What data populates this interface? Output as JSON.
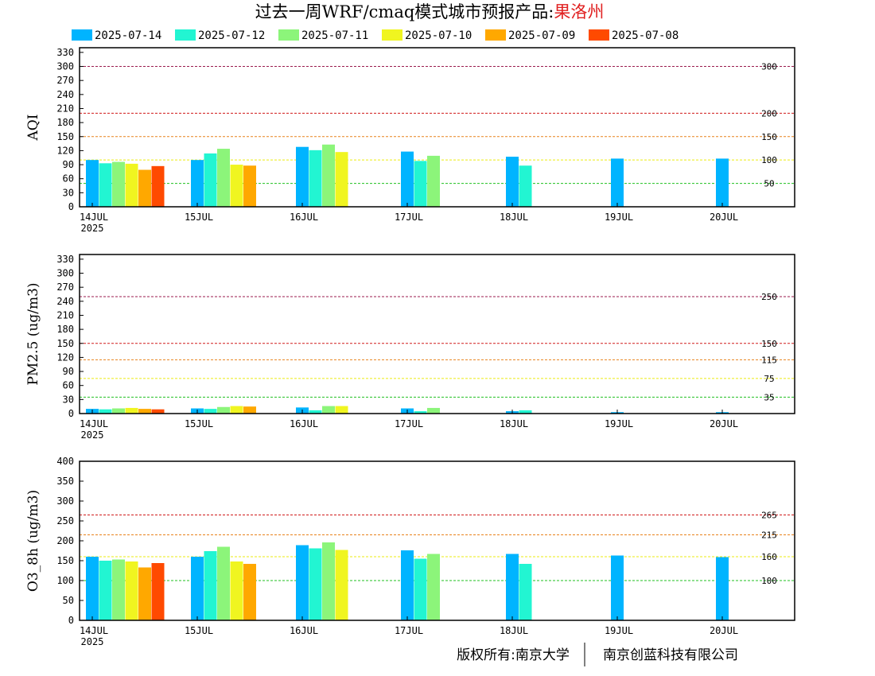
{
  "title": {
    "prefix": "过去一周WRF/cmaq模式城市预报产品:",
    "city": "果洛州",
    "city_color": "#e02020"
  },
  "legend": [
    {
      "label": "2025-07-14",
      "color": "#00b4ff"
    },
    {
      "label": "2025-07-12",
      "color": "#22f5d2"
    },
    {
      "label": "2025-07-11",
      "color": "#8cf57a"
    },
    {
      "label": "2025-07-10",
      "color": "#f0f520"
    },
    {
      "label": "2025-07-09",
      "color": "#ffa800"
    },
    {
      "label": "2025-07-08",
      "color": "#ff4a00"
    }
  ],
  "x_ticks": [
    "14JUL",
    "15JUL",
    "16JUL",
    "17JUL",
    "18JUL",
    "19JUL",
    "20JUL"
  ],
  "x_year": "2025",
  "copyright": {
    "left": "版权所有:南京大学",
    "right": "南京创蓝科技有限公司"
  },
  "chart_data": [
    {
      "type": "bar",
      "ylabel": "AQI",
      "ylim": [
        0,
        340
      ],
      "yticks": [
        0,
        30,
        60,
        90,
        120,
        150,
        180,
        210,
        240,
        270,
        300,
        330
      ],
      "ref_lines": [
        {
          "value": 300,
          "label": "300",
          "color": "#9b1b4e"
        },
        {
          "value": 200,
          "label": "200",
          "color": "#d01a1a"
        },
        {
          "value": 150,
          "label": "150",
          "color": "#e8821c"
        },
        {
          "value": 100,
          "label": "100",
          "color": "#ecec10"
        },
        {
          "value": 50,
          "label": "50",
          "color": "#20c020"
        }
      ],
      "series": [
        {
          "name": "2025-07-14",
          "values": [
            100,
            100,
            128,
            118,
            107,
            103,
            103
          ]
        },
        {
          "name": "2025-07-12",
          "values": [
            93,
            114,
            121,
            98,
            88,
            null,
            null
          ]
        },
        {
          "name": "2025-07-11",
          "values": [
            96,
            124,
            133,
            109,
            null,
            null,
            null
          ]
        },
        {
          "name": "2025-07-10",
          "values": [
            92,
            90,
            117,
            null,
            null,
            null,
            null
          ]
        },
        {
          "name": "2025-07-09",
          "values": [
            79,
            88,
            null,
            null,
            null,
            null,
            null
          ]
        },
        {
          "name": "2025-07-08",
          "values": [
            87,
            null,
            null,
            null,
            null,
            null,
            null
          ]
        }
      ]
    },
    {
      "type": "bar",
      "ylabel": "PM2.5 (ug/m3)",
      "ylim": [
        0,
        340
      ],
      "yticks": [
        0,
        30,
        60,
        90,
        120,
        150,
        180,
        210,
        240,
        270,
        300,
        330
      ],
      "ref_lines": [
        {
          "value": 250,
          "label": "250",
          "color": "#9b1b4e"
        },
        {
          "value": 150,
          "label": "150",
          "color": "#d01a1a"
        },
        {
          "value": 115,
          "label": "115",
          "color": "#e8821c"
        },
        {
          "value": 75,
          "label": "75",
          "color": "#ecec10"
        },
        {
          "value": 35,
          "label": "35",
          "color": "#20c020"
        }
      ],
      "series": [
        {
          "name": "2025-07-14",
          "values": [
            10,
            11,
            13,
            11,
            5,
            3,
            3
          ]
        },
        {
          "name": "2025-07-12",
          "values": [
            9,
            10,
            7,
            5,
            7,
            null,
            null
          ]
        },
        {
          "name": "2025-07-11",
          "values": [
            11,
            14,
            16,
            12,
            null,
            null,
            null
          ]
        },
        {
          "name": "2025-07-10",
          "values": [
            12,
            16,
            16,
            null,
            null,
            null,
            null
          ]
        },
        {
          "name": "2025-07-09",
          "values": [
            10,
            15,
            null,
            null,
            null,
            null,
            null
          ]
        },
        {
          "name": "2025-07-08",
          "values": [
            9,
            null,
            null,
            null,
            null,
            null,
            null
          ]
        }
      ]
    },
    {
      "type": "bar",
      "ylabel": "O3_8h (ug/m3)",
      "ylim": [
        0,
        400
      ],
      "yticks": [
        0,
        50,
        100,
        150,
        200,
        250,
        300,
        350,
        400
      ],
      "ref_lines": [
        {
          "value": 265,
          "label": "265",
          "color": "#d01a1a"
        },
        {
          "value": 215,
          "label": "215",
          "color": "#e8821c"
        },
        {
          "value": 160,
          "label": "160",
          "color": "#ecec10"
        },
        {
          "value": 100,
          "label": "100",
          "color": "#20c020"
        }
      ],
      "series": [
        {
          "name": "2025-07-14",
          "values": [
            160,
            160,
            189,
            176,
            167,
            163,
            159
          ]
        },
        {
          "name": "2025-07-12",
          "values": [
            150,
            174,
            181,
            155,
            142,
            null,
            null
          ]
        },
        {
          "name": "2025-07-11",
          "values": [
            153,
            185,
            196,
            167,
            null,
            null,
            null
          ]
        },
        {
          "name": "2025-07-10",
          "values": [
            148,
            148,
            177,
            null,
            null,
            null,
            null
          ]
        },
        {
          "name": "2025-07-09",
          "values": [
            133,
            142,
            null,
            null,
            null,
            null,
            null
          ]
        },
        {
          "name": "2025-07-08",
          "values": [
            144,
            null,
            null,
            null,
            null,
            null,
            null
          ]
        }
      ]
    }
  ]
}
